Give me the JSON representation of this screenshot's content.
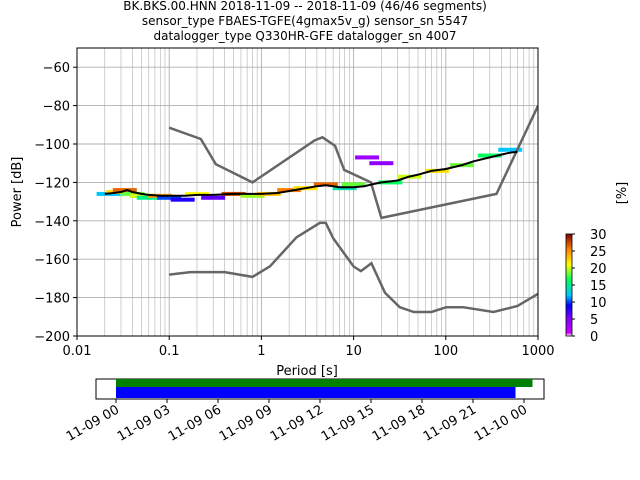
{
  "title_lines": [
    "BK.BKS.00.HNN   2018-11-09 -- 2018-11-09  (46/46 segments)",
    "sensor_type FBAES-TGFE(4gmax5v_g) sensor_sn 5547",
    "datalogger_type Q330HR-GFE datalogger_sn 4007"
  ],
  "colors": {
    "noise_model": "#666666",
    "mean_curve": "#000000",
    "grid": "#b0b0b0",
    "segments_upper": "#008000",
    "segments_lower": "#0000ff"
  },
  "chart_data": [
    {
      "type": "heatmap",
      "title": "",
      "xlabel": "Period [s]",
      "ylabel": "Power [dB]",
      "x_scale": "log",
      "xlim": [
        0.01,
        1000
      ],
      "ylim": [
        -200,
        -50
      ],
      "grid": true,
      "x_ticks": [
        "0.01",
        "0.1",
        "1",
        "10",
        "100",
        "1000"
      ],
      "y_ticks": [
        "−60",
        "−80",
        "−100",
        "−120",
        "−140",
        "−160",
        "−180",
        "−200"
      ],
      "colorbar": {
        "label": "[%]",
        "ticks": [
          "0",
          "5",
          "10",
          "15",
          "20",
          "25",
          "30"
        ],
        "range": [
          0,
          30
        ]
      },
      "series": [
        {
          "role": "high_noise_model",
          "x": [
            0.1,
            0.22,
            0.32,
            0.8,
            3.8,
            4.6,
            6.3,
            7.9,
            15.4,
            20,
            354.8,
            10000
          ],
          "y": [
            -91.5,
            -97.4,
            -110.5,
            -120,
            -98,
            -96.5,
            -101,
            -113.5,
            -120,
            -138.5,
            -126,
            -80.1
          ]
        },
        {
          "role": "low_noise_model",
          "x": [
            0.1,
            0.17,
            0.4,
            0.8,
            1.24,
            2.4,
            4.3,
            5,
            6,
            10,
            12,
            15.6,
            21.9,
            31.6,
            45,
            70,
            101,
            154,
            328,
            600,
            1000
          ],
          "y": [
            -168,
            -166.7,
            -166.7,
            -169.2,
            -163.7,
            -148.6,
            -141.1,
            -141.1,
            -149,
            -163.8,
            -166.2,
            -162.1,
            -177.5,
            -185,
            -187.5,
            -187.5,
            -185,
            -185,
            -187.5,
            -184.4,
            -178
          ]
        },
        {
          "role": "mean_psd",
          "x": [
            0.02,
            0.025,
            0.03,
            0.035,
            0.04,
            0.05,
            0.06,
            0.08,
            0.1,
            0.15,
            0.2,
            0.3,
            0.5,
            0.8,
            1,
            1.5,
            2,
            3,
            4,
            5,
            6,
            7,
            8,
            10,
            13,
            16,
            20,
            25,
            30,
            40,
            50,
            70,
            100,
            150,
            200,
            300,
            400,
            500,
            600
          ],
          "y": [
            -126,
            -125.5,
            -125,
            -124,
            -125,
            -126,
            -126.5,
            -127,
            -127,
            -127,
            -126.5,
            -126.5,
            -126,
            -126,
            -126,
            -125.5,
            -124.5,
            -123,
            -122,
            -121.5,
            -122,
            -122.5,
            -122.5,
            -122.5,
            -122,
            -121,
            -120,
            -119.5,
            -119,
            -117,
            -116,
            -114,
            -113,
            -111,
            -109,
            -107,
            -105.5,
            -104.5,
            -104
          ]
        }
      ],
      "heatmap_cells": [
        {
          "x": 0.022,
          "y": -126,
          "pct": 12
        },
        {
          "x": 0.028,
          "y": -125,
          "pct": 22
        },
        {
          "x": 0.033,
          "y": -124,
          "pct": 26
        },
        {
          "x": 0.04,
          "y": -126,
          "pct": 18
        },
        {
          "x": 0.05,
          "y": -127,
          "pct": 20
        },
        {
          "x": 0.06,
          "y": -128,
          "pct": 15
        },
        {
          "x": 0.08,
          "y": -127,
          "pct": 24
        },
        {
          "x": 0.1,
          "y": -128,
          "pct": 10
        },
        {
          "x": 0.14,
          "y": -129,
          "pct": 8
        },
        {
          "x": 0.2,
          "y": -126,
          "pct": 21
        },
        {
          "x": 0.3,
          "y": -128,
          "pct": 6
        },
        {
          "x": 0.5,
          "y": -126,
          "pct": 27
        },
        {
          "x": 0.8,
          "y": -127,
          "pct": 19
        },
        {
          "x": 1.2,
          "y": -126,
          "pct": 23
        },
        {
          "x": 2,
          "y": -124,
          "pct": 25
        },
        {
          "x": 3,
          "y": -123,
          "pct": 22
        },
        {
          "x": 5,
          "y": -121,
          "pct": 26
        },
        {
          "x": 8,
          "y": -123,
          "pct": 14
        },
        {
          "x": 10,
          "y": -121,
          "pct": 18
        },
        {
          "x": 14,
          "y": -107,
          "pct": 3
        },
        {
          "x": 20,
          "y": -110,
          "pct": 4
        },
        {
          "x": 25,
          "y": -120,
          "pct": 16
        },
        {
          "x": 40,
          "y": -117,
          "pct": 20
        },
        {
          "x": 80,
          "y": -114,
          "pct": 22
        },
        {
          "x": 150,
          "y": -111,
          "pct": 18
        },
        {
          "x": 300,
          "y": -106,
          "pct": 16
        },
        {
          "x": 500,
          "y": -103,
          "pct": 12
        }
      ]
    },
    {
      "type": "bar",
      "title": "",
      "role": "data_coverage",
      "x_ticks": [
        "11-09 00",
        "11-09 03",
        "11-09 06",
        "11-09 09",
        "11-09 12",
        "11-09 15",
        "11-09 18",
        "11-09 21",
        "11-10 00"
      ],
      "series": [
        {
          "role": "segments_upper",
          "start": "11-09 00:00",
          "end": "11-10 00:30"
        },
        {
          "role": "segments_lower",
          "start": "11-09 00:00",
          "end": "11-09 23:30"
        }
      ],
      "xlim": [
        "11-08 22:30",
        "11-10 01:30"
      ]
    }
  ]
}
